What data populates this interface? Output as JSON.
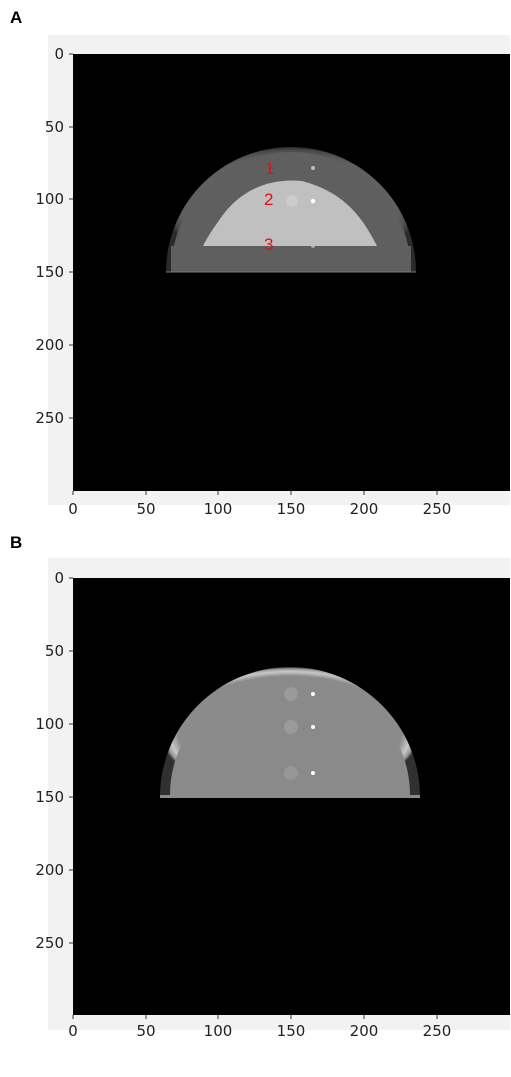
{
  "panels": [
    {
      "letter": "A",
      "image": {
        "shape": "half-disc phantom",
        "colors": {
          "background": "#000000",
          "outer_ring": "#5e5e5e",
          "inner_insert": "#bfbfbf",
          "frame": "#f2f2f2"
        },
        "markers": [
          "1",
          "2",
          "3"
        ]
      },
      "x_axis": {
        "range": [
          0,
          300
        ],
        "ticks": [
          "0",
          "50",
          "100",
          "150",
          "200",
          "250"
        ]
      },
      "y_axis": {
        "range": [
          0,
          300
        ],
        "ticks": [
          "0",
          "50",
          "100",
          "150",
          "200",
          "250"
        ],
        "inverted": true
      }
    },
    {
      "letter": "B",
      "image": {
        "shape": "half-disc phantom",
        "colors": {
          "background": "#000000",
          "disc": "#8a8a8a",
          "rim": "#c6c6c6",
          "frame": "#f2f2f2"
        }
      },
      "x_axis": {
        "range": [
          0,
          300
        ],
        "ticks": [
          "0",
          "50",
          "100",
          "150",
          "200",
          "250"
        ]
      },
      "y_axis": {
        "range": [
          0,
          300
        ],
        "ticks": [
          "0",
          "50",
          "100",
          "150",
          "200",
          "250"
        ],
        "inverted": true
      }
    }
  ]
}
